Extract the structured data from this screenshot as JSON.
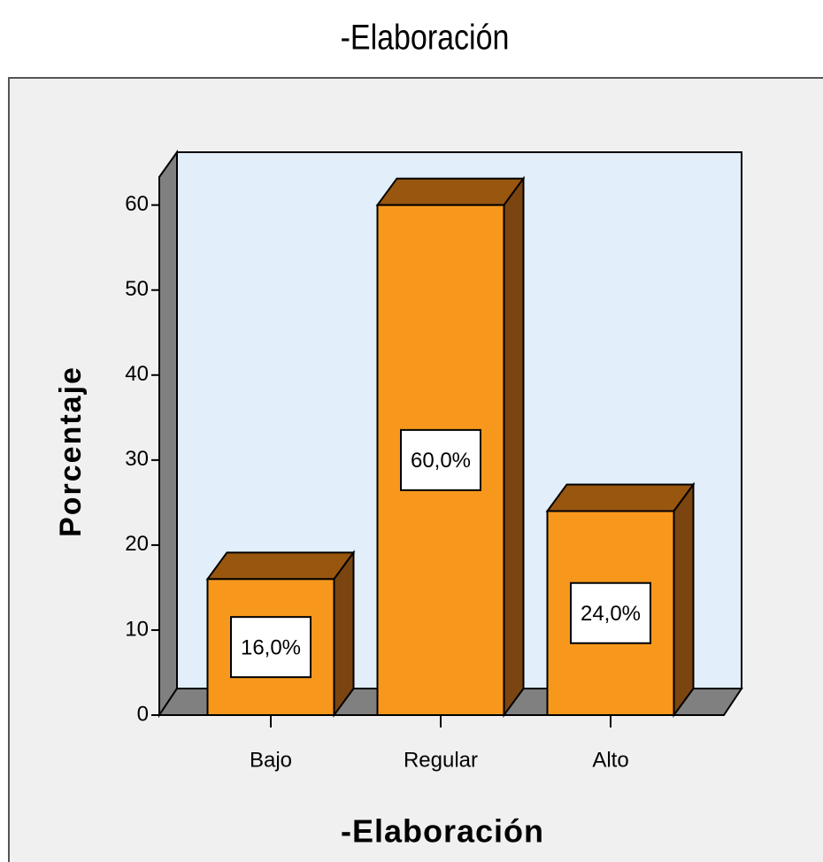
{
  "chart_data": {
    "type": "bar",
    "title": "-Elaboración",
    "x_label": "-Elaboración",
    "y_label": "Porcentaje",
    "categories": [
      "Bajo",
      "Regular",
      "Alto"
    ],
    "values": [
      16,
      60,
      24
    ],
    "value_labels": [
      "16,0%",
      "60,0%",
      "24,0%"
    ],
    "color": "#f7981d",
    "ylim": [
      0,
      63.3
    ],
    "yticks": [
      0,
      10,
      20,
      30,
      40,
      50,
      60
    ]
  }
}
